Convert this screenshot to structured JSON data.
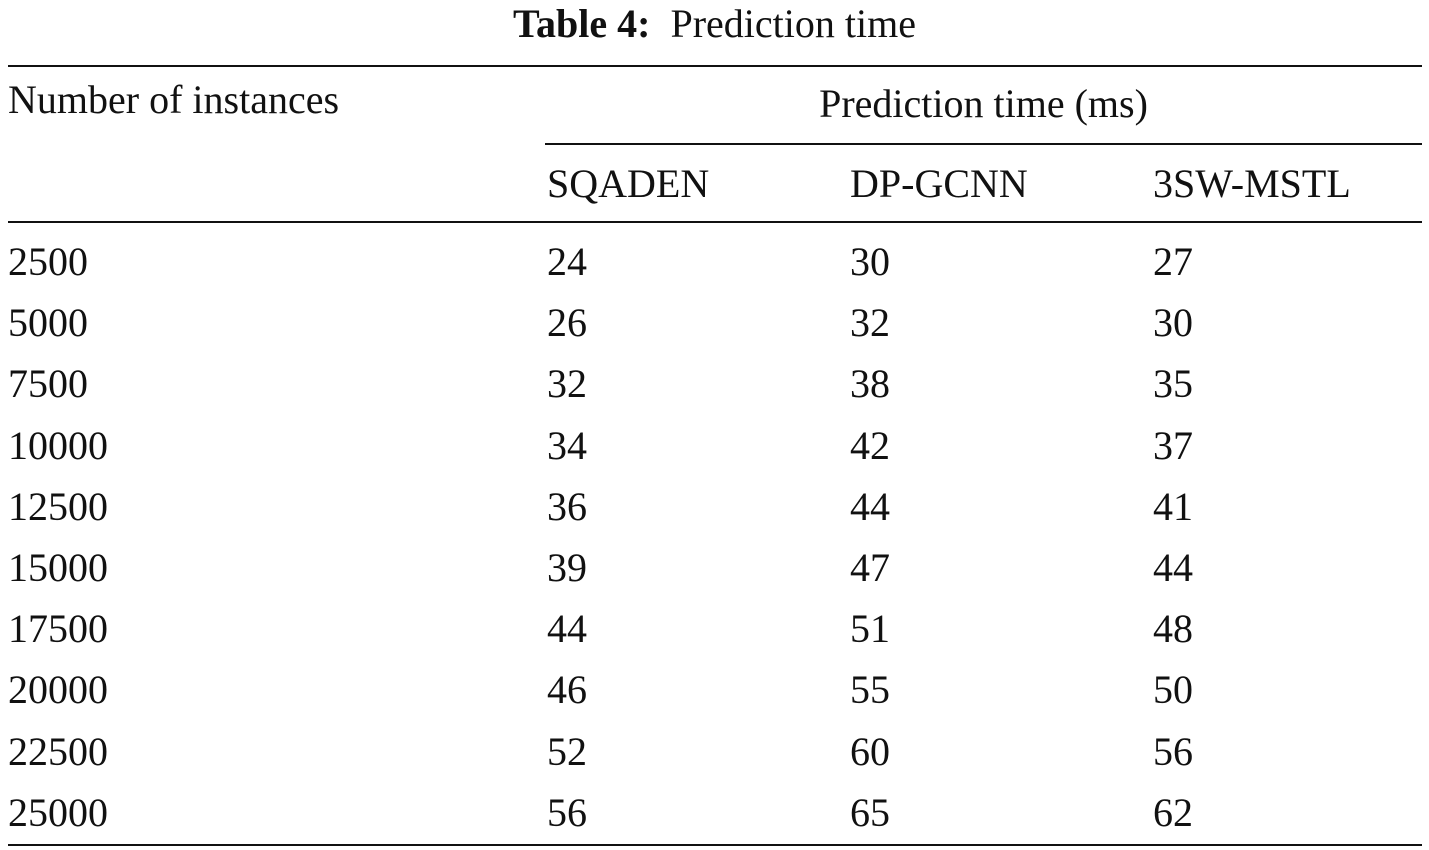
{
  "caption": {
    "label": "Table 4:",
    "text": "Prediction time"
  },
  "table": {
    "row_header": "Number of instances",
    "group_header": "Prediction time (ms)",
    "columns": [
      "SQADEN",
      "DP-GCNN",
      "3SW-MSTL"
    ],
    "rows": [
      [
        2500,
        24,
        30,
        27
      ],
      [
        5000,
        26,
        32,
        30
      ],
      [
        7500,
        32,
        38,
        35
      ],
      [
        10000,
        34,
        42,
        37
      ],
      [
        12500,
        36,
        44,
        41
      ],
      [
        15000,
        39,
        47,
        44
      ],
      [
        17500,
        44,
        51,
        48
      ],
      [
        20000,
        46,
        55,
        50
      ],
      [
        22500,
        52,
        60,
        56
      ],
      [
        25000,
        56,
        65,
        62
      ]
    ]
  }
}
